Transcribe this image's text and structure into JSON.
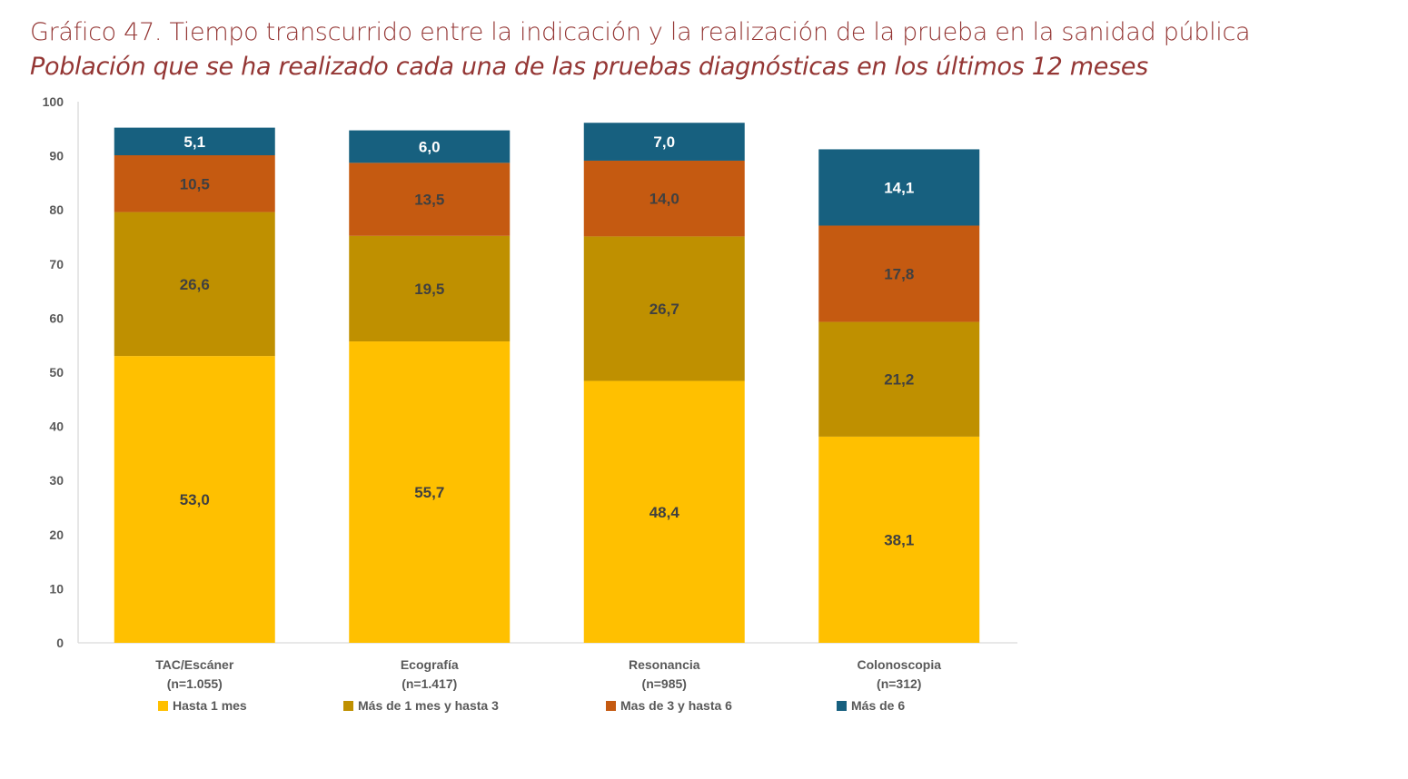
{
  "header": {
    "title": "Gráfico 47. Tiempo transcurrido entre la indicación y la realización de la prueba en la sanidad pública",
    "subtitle": "Población que se ha realizado cada una de las pruebas diagnósticas en los últimos 12 meses"
  },
  "chart_data": {
    "type": "bar",
    "stacked": true,
    "title": "Gráfico 47. Tiempo transcurrido entre la indicación y la realización de la prueba en la sanidad pública",
    "subtitle": "Población que se ha realizado cada una de las pruebas diagnósticas en los últimos 12 meses",
    "xlabel": "",
    "ylabel": "",
    "ylim": [
      0,
      100
    ],
    "yticks": [
      0,
      10,
      20,
      30,
      40,
      50,
      60,
      70,
      80,
      90,
      100
    ],
    "grid": false,
    "legend_position": "bottom",
    "categories": [
      {
        "name": "TAC/Escáner",
        "n": "(n=1.055)"
      },
      {
        "name": "Ecografía",
        "n": "(n=1.417)"
      },
      {
        "name": "Resonancia",
        "n": "(n=985)"
      },
      {
        "name": "Colonoscopia",
        "n": "(n=312)"
      }
    ],
    "series": [
      {
        "name": "Hasta 1 mes",
        "color": "#FFC000",
        "label_color": "#404040",
        "values": [
          53.0,
          55.7,
          48.4,
          38.1
        ],
        "labels": [
          "53,0",
          "55,7",
          "48,4",
          "38,1"
        ]
      },
      {
        "name": "Más de 1 mes y hasta 3",
        "color": "#BF9000",
        "label_color": "#404040",
        "values": [
          26.6,
          19.5,
          26.7,
          21.2
        ],
        "labels": [
          "26,6",
          "19,5",
          "26,7",
          "21,2"
        ]
      },
      {
        "name": "Mas de 3 y hasta 6",
        "color": "#C55A11",
        "label_color": "#404040",
        "values": [
          10.5,
          13.5,
          14.0,
          17.8
        ],
        "labels": [
          "10,5",
          "13,5",
          "14,0",
          "17,8"
        ]
      },
      {
        "name": "Más de 6",
        "color": "#17607F",
        "label_color": "#FFFFFF",
        "values": [
          5.1,
          6.0,
          7.0,
          14.1
        ],
        "labels": [
          "5,1",
          "6,0",
          "7,0",
          "14,1"
        ]
      }
    ]
  }
}
